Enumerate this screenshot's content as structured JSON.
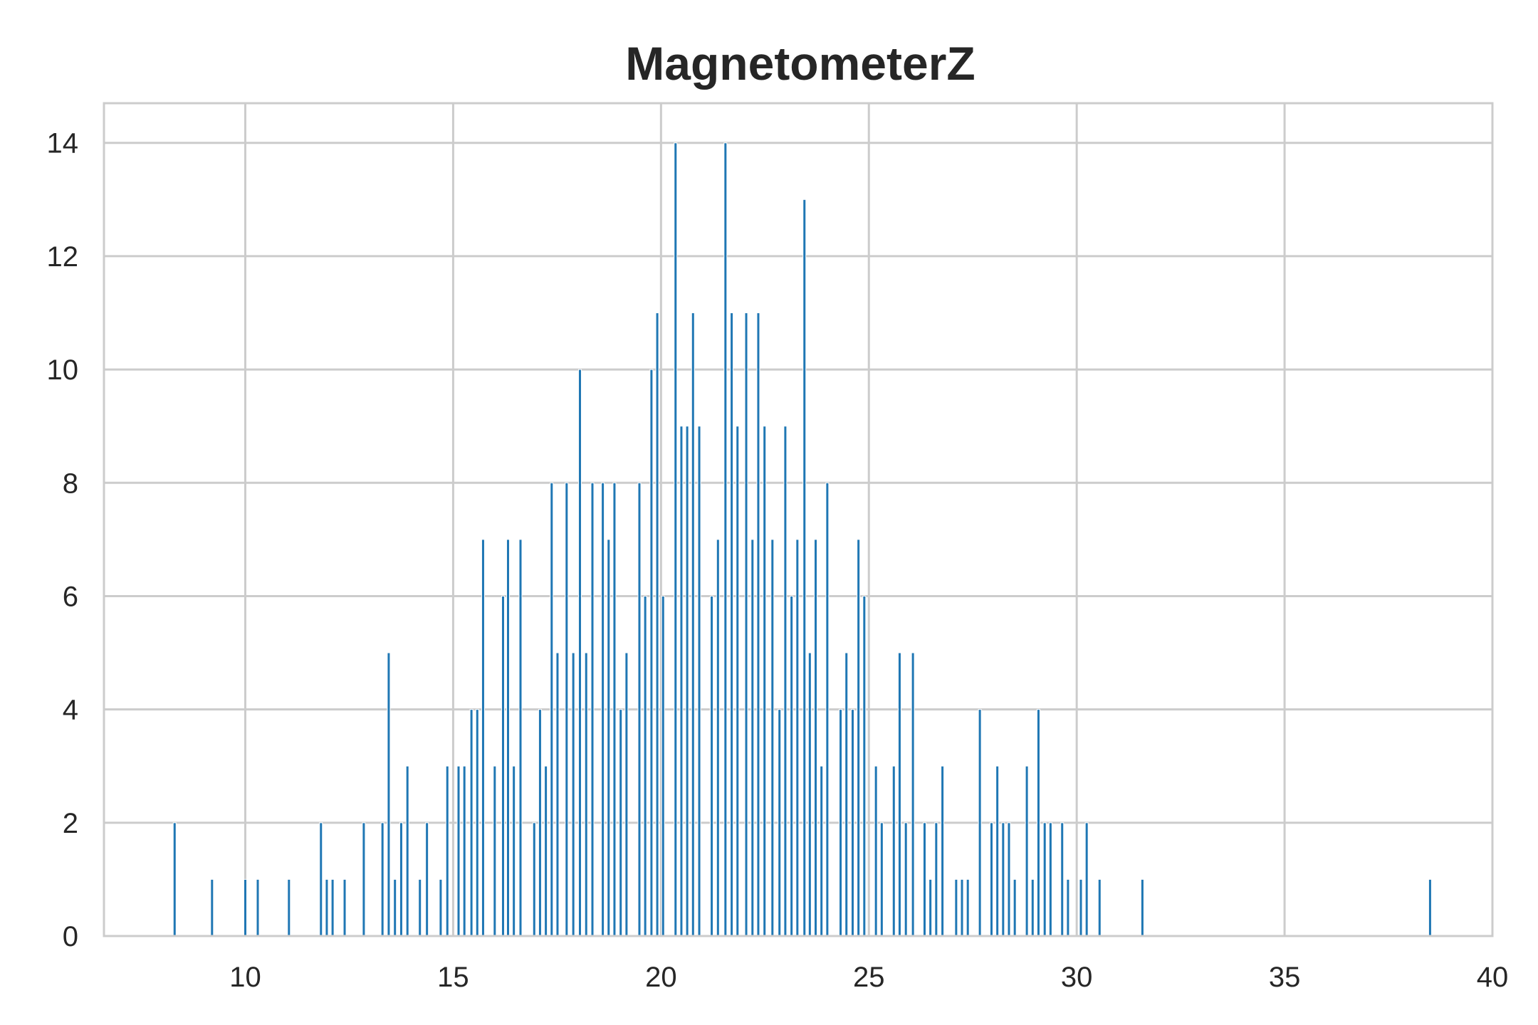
{
  "chart_data": {
    "type": "bar",
    "title": "MagnetometerZ",
    "xlabel": "",
    "ylabel": "",
    "xlim": [
      6.6,
      40
    ],
    "ylim": [
      0,
      14.7
    ],
    "xticks": [
      10,
      15,
      20,
      25,
      30,
      35,
      40
    ],
    "yticks": [
      0,
      2,
      4,
      6,
      8,
      10,
      12,
      14
    ],
    "grid": true,
    "bar_color": "#1f77b4",
    "grid_color": "#cccccc",
    "series": [
      {
        "points": [
          {
            "x": 8.3,
            "y": 2
          },
          {
            "x": 9.2,
            "y": 1
          },
          {
            "x": 10.0,
            "y": 1
          },
          {
            "x": 10.3,
            "y": 1
          },
          {
            "x": 11.05,
            "y": 1
          },
          {
            "x": 11.82,
            "y": 2
          },
          {
            "x": 11.96,
            "y": 1
          },
          {
            "x": 12.1,
            "y": 1
          },
          {
            "x": 12.39,
            "y": 1
          },
          {
            "x": 12.85,
            "y": 2
          },
          {
            "x": 13.3,
            "y": 2
          },
          {
            "x": 13.45,
            "y": 5
          },
          {
            "x": 13.6,
            "y": 1
          },
          {
            "x": 13.75,
            "y": 2
          },
          {
            "x": 13.9,
            "y": 3
          },
          {
            "x": 14.2,
            "y": 1
          },
          {
            "x": 14.37,
            "y": 2
          },
          {
            "x": 14.7,
            "y": 1
          },
          {
            "x": 14.86,
            "y": 3
          },
          {
            "x": 15.13,
            "y": 3
          },
          {
            "x": 15.27,
            "y": 3
          },
          {
            "x": 15.44,
            "y": 4
          },
          {
            "x": 15.58,
            "y": 4
          },
          {
            "x": 15.72,
            "y": 7
          },
          {
            "x": 16.0,
            "y": 3
          },
          {
            "x": 16.2,
            "y": 6
          },
          {
            "x": 16.32,
            "y": 7
          },
          {
            "x": 16.46,
            "y": 3
          },
          {
            "x": 16.62,
            "y": 7
          },
          {
            "x": 16.95,
            "y": 2
          },
          {
            "x": 17.09,
            "y": 4
          },
          {
            "x": 17.23,
            "y": 3
          },
          {
            "x": 17.37,
            "y": 8
          },
          {
            "x": 17.51,
            "y": 5
          },
          {
            "x": 17.73,
            "y": 8
          },
          {
            "x": 17.89,
            "y": 5
          },
          {
            "x": 18.05,
            "y": 10
          },
          {
            "x": 18.2,
            "y": 5
          },
          {
            "x": 18.35,
            "y": 8
          },
          {
            "x": 18.6,
            "y": 8
          },
          {
            "x": 18.74,
            "y": 7
          },
          {
            "x": 18.88,
            "y": 8
          },
          {
            "x": 19.03,
            "y": 4
          },
          {
            "x": 19.17,
            "y": 5
          },
          {
            "x": 19.48,
            "y": 8
          },
          {
            "x": 19.62,
            "y": 6
          },
          {
            "x": 19.77,
            "y": 10
          },
          {
            "x": 19.91,
            "y": 11
          },
          {
            "x": 20.05,
            "y": 6
          },
          {
            "x": 20.35,
            "y": 14
          },
          {
            "x": 20.49,
            "y": 9
          },
          {
            "x": 20.63,
            "y": 9
          },
          {
            "x": 20.77,
            "y": 11
          },
          {
            "x": 20.92,
            "y": 9
          },
          {
            "x": 21.22,
            "y": 6
          },
          {
            "x": 21.37,
            "y": 7
          },
          {
            "x": 21.55,
            "y": 14
          },
          {
            "x": 21.7,
            "y": 11
          },
          {
            "x": 21.84,
            "y": 9
          },
          {
            "x": 22.05,
            "y": 11
          },
          {
            "x": 22.2,
            "y": 7
          },
          {
            "x": 22.34,
            "y": 11
          },
          {
            "x": 22.49,
            "y": 9
          },
          {
            "x": 22.68,
            "y": 7
          },
          {
            "x": 22.85,
            "y": 4
          },
          {
            "x": 22.99,
            "y": 9
          },
          {
            "x": 23.14,
            "y": 6
          },
          {
            "x": 23.28,
            "y": 7
          },
          {
            "x": 23.45,
            "y": 13
          },
          {
            "x": 23.58,
            "y": 5
          },
          {
            "x": 23.72,
            "y": 7
          },
          {
            "x": 23.86,
            "y": 3
          },
          {
            "x": 24.0,
            "y": 8
          },
          {
            "x": 24.32,
            "y": 4
          },
          {
            "x": 24.46,
            "y": 5
          },
          {
            "x": 24.61,
            "y": 4
          },
          {
            "x": 24.75,
            "y": 7
          },
          {
            "x": 24.89,
            "y": 6
          },
          {
            "x": 25.17,
            "y": 3
          },
          {
            "x": 25.31,
            "y": 2
          },
          {
            "x": 25.6,
            "y": 3
          },
          {
            "x": 25.74,
            "y": 5
          },
          {
            "x": 25.89,
            "y": 2
          },
          {
            "x": 26.06,
            "y": 5
          },
          {
            "x": 26.34,
            "y": 2
          },
          {
            "x": 26.48,
            "y": 1
          },
          {
            "x": 26.62,
            "y": 2
          },
          {
            "x": 26.77,
            "y": 3
          },
          {
            "x": 27.1,
            "y": 1
          },
          {
            "x": 27.24,
            "y": 1
          },
          {
            "x": 27.38,
            "y": 1
          },
          {
            "x": 27.67,
            "y": 4
          },
          {
            "x": 27.95,
            "y": 2
          },
          {
            "x": 28.09,
            "y": 3
          },
          {
            "x": 28.23,
            "y": 2
          },
          {
            "x": 28.37,
            "y": 2
          },
          {
            "x": 28.51,
            "y": 1
          },
          {
            "x": 28.8,
            "y": 3
          },
          {
            "x": 28.94,
            "y": 1
          },
          {
            "x": 29.08,
            "y": 4
          },
          {
            "x": 29.23,
            "y": 2
          },
          {
            "x": 29.37,
            "y": 2
          },
          {
            "x": 29.65,
            "y": 2
          },
          {
            "x": 29.79,
            "y": 1
          },
          {
            "x": 30.1,
            "y": 1
          },
          {
            "x": 30.24,
            "y": 2
          },
          {
            "x": 30.55,
            "y": 1
          },
          {
            "x": 31.58,
            "y": 1
          },
          {
            "x": 38.5,
            "y": 1
          }
        ]
      }
    ]
  }
}
